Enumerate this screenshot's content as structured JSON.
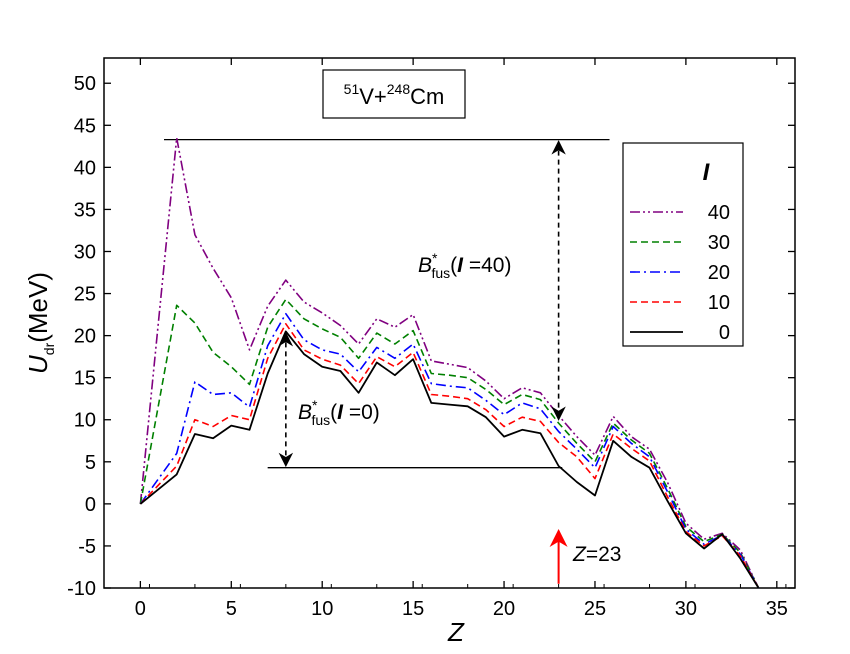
{
  "chart_data": {
    "type": "line",
    "title_box": {
      "sup1": "51",
      "el1": "V+",
      "sup2": "248",
      "el2": "Cm"
    },
    "xlabel": "Z",
    "ylabel": {
      "main": "U",
      "sub": "dr",
      "tail": "(MeV)"
    },
    "xlim": [
      -2,
      36
    ],
    "ylim": [
      -10,
      53
    ],
    "xticks": [
      0,
      5,
      10,
      15,
      20,
      25,
      30,
      35
    ],
    "yticks": [
      -10,
      -5,
      0,
      5,
      10,
      15,
      20,
      25,
      30,
      35,
      40,
      45,
      50
    ],
    "x": [
      0,
      2,
      3,
      4,
      5,
      6,
      7,
      8,
      9,
      10,
      11,
      12,
      13,
      14,
      15,
      16,
      17,
      18,
      19,
      20,
      21,
      22,
      23,
      24,
      25,
      26,
      27,
      28,
      29,
      30,
      31,
      32,
      33,
      34
    ],
    "legend_header": "I",
    "series": [
      {
        "name": "40",
        "color": "#800080",
        "dash": "dash-dot-dot",
        "values": [
          0,
          43.5,
          32,
          28,
          24.5,
          18.3,
          23.5,
          26.6,
          24,
          22.7,
          21.2,
          19,
          22,
          21,
          22.5,
          17,
          16.6,
          16.2,
          14.6,
          12.5,
          13.8,
          13.2,
          10.5,
          8,
          5.8,
          10.4,
          8,
          6.5,
          2.5,
          -2.3,
          -4.2,
          -3.5,
          -5.5,
          -10
        ]
      },
      {
        "name": "30",
        "color": "#008000",
        "dash": "dash",
        "values": [
          0,
          23.6,
          21.5,
          18,
          16.3,
          14.2,
          21,
          24.3,
          22,
          20.8,
          19.8,
          17.3,
          20.3,
          19,
          20.6,
          15.5,
          15.3,
          15,
          13.6,
          11.8,
          13,
          12.4,
          9.6,
          7.2,
          5,
          9.6,
          7.6,
          6,
          1.8,
          -2.7,
          -4.5,
          -3.6,
          -5.8,
          -10
        ]
      },
      {
        "name": "20",
        "color": "#0000ff",
        "dash": "dash-dot",
        "values": [
          0,
          6,
          14.5,
          13,
          13.2,
          11.5,
          18.8,
          22.6,
          19.5,
          18.3,
          17.8,
          15.7,
          18.6,
          17.3,
          19,
          14.3,
          14,
          13.8,
          12.3,
          10.6,
          12,
          11.3,
          8.6,
          6.5,
          4.3,
          9.2,
          7.2,
          5.6,
          1.4,
          -3,
          -4.8,
          -3.7,
          -6,
          -10
        ]
      },
      {
        "name": "10",
        "color": "#ff0000",
        "dash": "dash",
        "values": [
          0,
          4.5,
          10,
          9.2,
          10.5,
          10,
          17.3,
          21.4,
          18.3,
          17.2,
          16.5,
          14.3,
          17.5,
          16.3,
          18,
          13,
          12.8,
          12.5,
          11.2,
          9.2,
          10.3,
          9.8,
          7.3,
          5.6,
          3,
          8.3,
          6.6,
          5.1,
          0.8,
          -3.3,
          -5,
          -3.8,
          -6.2,
          -10
        ]
      },
      {
        "name": "0",
        "color": "#000000",
        "dash": "solid",
        "values": [
          0,
          3.5,
          8.3,
          7.8,
          9.3,
          8.8,
          15.5,
          20.5,
          17.8,
          16.3,
          15.8,
          13.2,
          16.8,
          15.3,
          17.2,
          12,
          11.8,
          11.6,
          10.3,
          8,
          8.8,
          8.4,
          4.5,
          2.6,
          1,
          7.5,
          5.6,
          4.3,
          0.3,
          -3.5,
          -5.3,
          -3.6,
          -6.5,
          -10
        ]
      }
    ],
    "reference_lines": [
      {
        "x1": 1.3,
        "x2": 25.8,
        "y": 43.3
      },
      {
        "x1": 7,
        "x2": 23.2,
        "y": 4.3
      }
    ],
    "annotations": {
      "b40": {
        "B": "B",
        "star": "*",
        "sub": "fus",
        "open": "(",
        "I": "I",
        "rest": " =40)"
      },
      "b0": {
        "B": "B",
        "star": "*",
        "sub": "fus",
        "open": "(",
        "I": "I",
        "rest": " =0)"
      },
      "z23": {
        "Z": "Z",
        "rest": "=23"
      }
    },
    "arrow_b40": {
      "x": 23,
      "y_top": 43.3,
      "y_bottom": 9.8
    },
    "arrow_b0": {
      "x": 8,
      "y_top": 20.5,
      "y_bottom": 4.3
    },
    "arrow_z23": {
      "x": 23,
      "y_top": -3.2,
      "y_bottom": -9.5,
      "color": "#ff0000"
    },
    "grid": false,
    "legend_position": "right"
  }
}
